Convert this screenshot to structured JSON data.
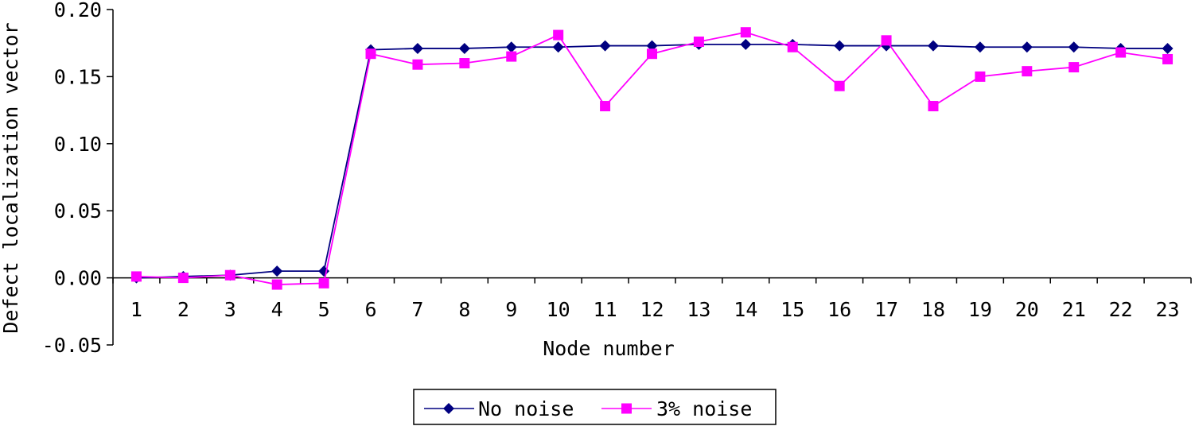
{
  "chart_data": {
    "type": "line",
    "xlabel": "Node number",
    "ylabel": "Defect localization vector",
    "categories": [
      "1",
      "2",
      "3",
      "4",
      "5",
      "6",
      "7",
      "8",
      "9",
      "10",
      "11",
      "12",
      "13",
      "14",
      "15",
      "16",
      "17",
      "18",
      "19",
      "20",
      "21",
      "22",
      "23"
    ],
    "ylim": [
      -0.05,
      0.2
    ],
    "yticks": [
      "0.20",
      "0.15",
      "0.10",
      "0.05",
      "0.00",
      "-0.05"
    ],
    "ytick_values": [
      0.2,
      0.15,
      0.1,
      0.05,
      0.0,
      -0.05
    ],
    "grid": false,
    "legend_position": "bottom",
    "series": [
      {
        "name": "No noise",
        "color": "#000080",
        "marker": "diamond",
        "values": [
          0.0,
          0.001,
          0.002,
          0.005,
          0.005,
          0.17,
          0.171,
          0.171,
          0.172,
          0.172,
          0.173,
          0.173,
          0.174,
          0.174,
          0.174,
          0.173,
          0.173,
          0.173,
          0.172,
          0.172,
          0.172,
          0.171,
          0.171
        ]
      },
      {
        "name": "3% noise",
        "color": "#ff00ff",
        "marker": "square",
        "values": [
          0.001,
          0.0,
          0.002,
          -0.005,
          -0.004,
          0.167,
          0.159,
          0.16,
          0.165,
          0.181,
          0.128,
          0.167,
          0.176,
          0.183,
          0.172,
          0.143,
          0.177,
          0.128,
          0.15,
          0.154,
          0.157,
          0.168,
          0.163
        ]
      }
    ]
  }
}
